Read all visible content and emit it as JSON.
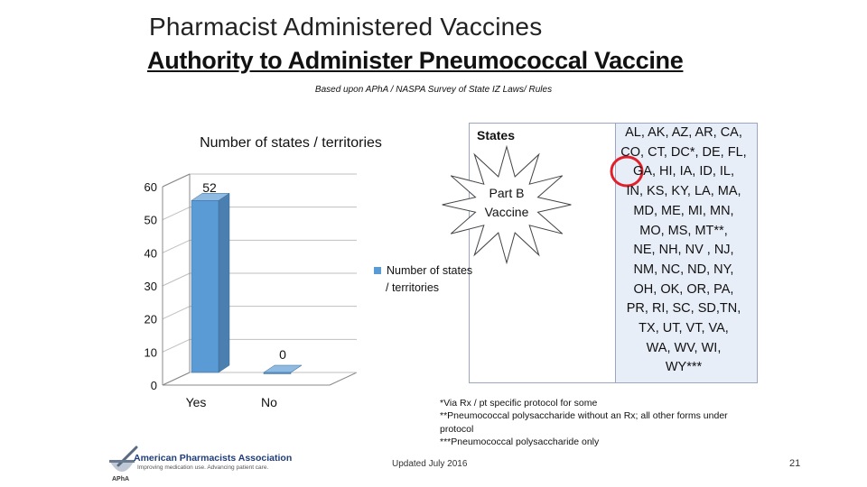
{
  "slide": {
    "title": "Pharmacist Administered Vaccines",
    "subtitle": "Authority to Administer Pneumococcal Vaccine",
    "source_note": "Based upon APhA / NASPA Survey of State IZ Laws/ Rules",
    "updated": "Updated July 2016",
    "page_number": "21"
  },
  "callout": {
    "text_line1": "Part B",
    "text_line2": "Vaccine"
  },
  "states_box": {
    "header": "States",
    "lines": [
      "AL, AK, AZ, AR, CA,",
      "CO, CT, DC*, DE, FL,",
      "GA, HI, IA, ID, IL,",
      "IN, KS, KY, LA, MA,",
      "MD, ME, MI, MN,",
      "MO, MS, MT**,",
      "NE, NH, NV , NJ,",
      "NM, NC, ND, NY,",
      "OH, OK, OR, PA,",
      "PR, RI, SC, SD,TN,",
      "TX, UT, VT, VA,",
      "WA, WV, WI,",
      "WY***"
    ],
    "highlight_color": "#e0202a"
  },
  "footnotes": [
    "*Via Rx / pt specific protocol for some",
    "**Pneumococcal polysaccharide without an Rx; all other forms under protocol",
    "***Pneumococcal polysaccharide only"
  ],
  "logo": {
    "name": "American Pharmacists Association",
    "tagline": "Improving medication use. Advancing patient care.",
    "abbr": "APhA",
    "icon": "mortar-pestle-icon"
  },
  "chart_data": {
    "type": "bar",
    "title": "Number of states / territories",
    "categories": [
      "Yes",
      "No"
    ],
    "series": [
      {
        "name": "Number of states / territories",
        "values": [
          52,
          0
        ]
      }
    ],
    "data_labels": [
      "52",
      "0"
    ],
    "y_ticks": [
      "0",
      "10",
      "20",
      "30",
      "40",
      "50",
      "60"
    ],
    "ylim": [
      0,
      60
    ],
    "xlabel": "",
    "ylabel": "",
    "grid": true,
    "three_d": true,
    "legend_position": "right",
    "bar_color": "#5b9bd5"
  }
}
